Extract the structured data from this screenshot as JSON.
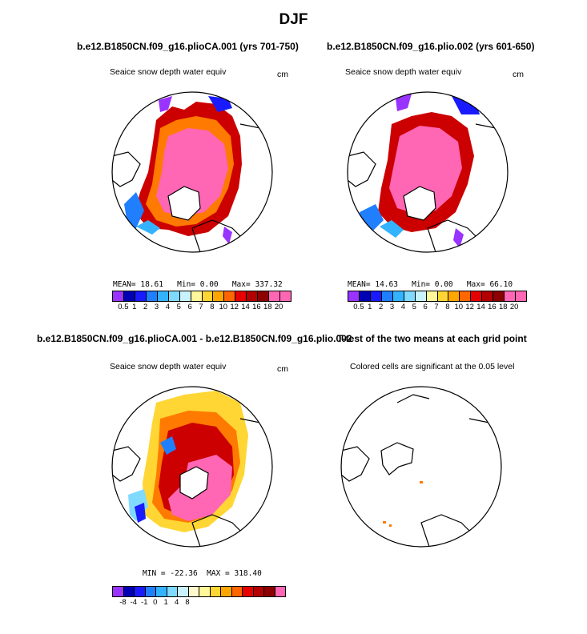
{
  "title": "DJF",
  "panels": [
    {
      "case_title": "b.e12.B1850CN.f09_g16.plioCA.001 (yrs 701-750)",
      "variable": "Seaice snow depth water equiv",
      "units": "cm",
      "stats": {
        "mean_label": "MEAN=",
        "mean": "18.61",
        "min_label": "Min=",
        "min": "0.00",
        "max_label": "Max=",
        "max": "337.32"
      },
      "ice_fill": "#ff66b3"
    },
    {
      "case_title": "b.e12.B1850CN.f09_g16.plio.002 (yrs 601-650)",
      "variable": "Seaice snow depth water equiv",
      "units": "cm",
      "stats": {
        "mean_label": "MEAN=",
        "mean": "14.63",
        "min_label": "Min=",
        "min": "0.00",
        "max_label": "Max=",
        "max": "66.10"
      },
      "ice_fill": "#ff66b3"
    },
    {
      "case_title": "b.e12.B1850CN.f09_g16.plioCA.001 - b.e12.B1850CN.f09_g16.plio.002",
      "variable": "Seaice snow depth water equiv",
      "units": "cm",
      "stats": {
        "min_label": "MIN =",
        "min": "-22.36",
        "max_label": "MAX =",
        "max": "318.40"
      }
    },
    {
      "case_title": "T-test of the two means at each grid point",
      "variable": "Colored cells are significant at the 0.05 level"
    }
  ],
  "chart_data": {
    "type": "heatmap",
    "projection": "north polar stereographic",
    "season": "DJF",
    "colorbar_abs": {
      "levels": [
        "0.5",
        "1",
        "2",
        "3",
        "4",
        "5",
        "6",
        "7",
        "8",
        "10",
        "12",
        "14",
        "16",
        "18",
        "20"
      ],
      "colors": [
        "#9933ff",
        "#0000b3",
        "#1a1aff",
        "#1f7fff",
        "#33b3ff",
        "#80d9ff",
        "#c9f2ff",
        "#fff799",
        "#ffd633",
        "#ffa600",
        "#ff6600",
        "#e60000",
        "#b30000",
        "#8c0000",
        "#ff66b3",
        "#ff66b3"
      ]
    },
    "colorbar_diff": {
      "levels": [
        "-8",
        "-4",
        "-1",
        "0",
        "1",
        "4",
        "8"
      ],
      "colors": [
        "#9933ff",
        "#0000b3",
        "#1a1aff",
        "#1f7fff",
        "#33b3ff",
        "#80d9ff",
        "#c9f2ff",
        "#fffacd",
        "#fff799",
        "#ffd633",
        "#ffa600",
        "#ff6600",
        "#e60000",
        "#b30000",
        "#8c0000",
        "#ff66b3"
      ]
    }
  }
}
